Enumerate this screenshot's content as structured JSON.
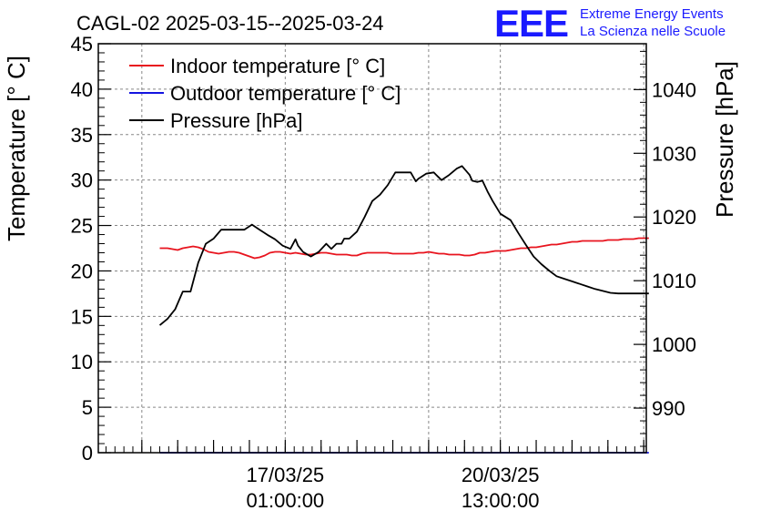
{
  "chart_data": {
    "type": "line",
    "title": "CAGL-02 2025-03-15--2025-03-24",
    "ylabel_left": "Temperature [° C]",
    "ylabel_right": "Pressure [hPa]",
    "ylim_left": [
      0,
      45
    ],
    "ylim_right": [
      983.0,
      1047.2
    ],
    "xlim_hours": [
      -24,
      190
    ],
    "x_unit": "hours since 2025-03-15 00:00",
    "left_ticks": [
      "0",
      "5",
      "10",
      "15",
      "20",
      "25",
      "30",
      "35",
      "40",
      "45"
    ],
    "right_ticks": [
      "990",
      "1000",
      "1010",
      "1020",
      "1030",
      "1040"
    ],
    "x_tick_labels": [
      {
        "x": 49,
        "date": "17/03/25",
        "time": "01:00:00"
      },
      {
        "x": 133,
        "date": "20/03/25",
        "time": "13:00:00"
      }
    ],
    "x_grid": [
      -7,
      49,
      105,
      133,
      189
    ],
    "series": [
      {
        "name": "Indoor temperature [° C]",
        "axis": "left",
        "color": "#e8141e",
        "x": [
          0,
          3,
          5,
          7,
          9,
          11,
          13,
          15,
          17,
          19,
          21,
          23,
          25,
          27,
          29,
          31,
          33,
          35,
          37,
          39,
          41,
          43,
          45,
          47,
          49,
          51,
          53,
          55,
          57,
          59,
          61,
          63,
          65,
          67,
          69,
          71,
          73,
          75,
          77,
          79,
          81,
          83,
          85,
          87,
          89,
          91,
          93,
          95,
          97,
          99,
          101,
          103,
          105,
          107,
          109,
          111,
          113,
          115,
          117,
          119,
          121,
          123,
          125,
          127,
          129,
          131,
          133,
          135,
          137,
          139,
          141,
          143,
          145,
          147,
          149,
          151,
          153,
          155,
          157,
          159,
          161,
          163,
          165,
          167,
          169,
          171,
          173,
          175,
          177,
          179,
          181,
          183,
          185,
          187,
          189,
          191
        ],
        "values": [
          22.5,
          22.5,
          22.4,
          22.3,
          22.5,
          22.6,
          22.7,
          22.6,
          22.4,
          22.1,
          22.0,
          21.9,
          22.0,
          22.1,
          22.1,
          22.0,
          21.8,
          21.6,
          21.4,
          21.5,
          21.7,
          22.0,
          22.1,
          22.1,
          22.0,
          21.9,
          22.0,
          21.9,
          21.8,
          21.8,
          21.9,
          22.0,
          22.0,
          21.9,
          21.8,
          21.8,
          21.8,
          21.7,
          21.7,
          21.9,
          22.0,
          22.0,
          22.0,
          22.0,
          22.0,
          21.9,
          21.9,
          21.9,
          21.9,
          21.9,
          22.0,
          22.0,
          22.1,
          22.0,
          21.9,
          21.9,
          21.8,
          21.8,
          21.8,
          21.7,
          21.7,
          21.8,
          22.0,
          22.0,
          22.1,
          22.2,
          22.2,
          22.2,
          22.3,
          22.4,
          22.5,
          22.5,
          22.6,
          22.6,
          22.7,
          22.8,
          22.9,
          22.9,
          23.0,
          23.1,
          23.2,
          23.2,
          23.3,
          23.3,
          23.3,
          23.3,
          23.3,
          23.4,
          23.4,
          23.4,
          23.5,
          23.5,
          23.5,
          23.6,
          23.6,
          23.6
        ]
      },
      {
        "name": "Outdoor temperature [° C]",
        "axis": "left",
        "color": "#1414e0",
        "x": [
          0,
          191
        ],
        "values": [
          0,
          0
        ]
      },
      {
        "name": "Pressure [hPa]",
        "axis": "right",
        "color": "#000000",
        "x": [
          0,
          3,
          6,
          9,
          12,
          15,
          18,
          21,
          24,
          27,
          30,
          33,
          36,
          39,
          42,
          45,
          48,
          51,
          53,
          54,
          56,
          59,
          62,
          65,
          67,
          69,
          71,
          72,
          74,
          77,
          80,
          83,
          86,
          89,
          92,
          95,
          98,
          100,
          101,
          104,
          107,
          108,
          110,
          113,
          116,
          118,
          121,
          122,
          124,
          126,
          128,
          130,
          133,
          137,
          140,
          143,
          146,
          149,
          152,
          155,
          158,
          161,
          164,
          167,
          170,
          173,
          176,
          179,
          182,
          185,
          188,
          191
        ],
        "values": [
          1003.0,
          1004.0,
          1005.5,
          1008.3,
          1008.3,
          1012.8,
          1015.8,
          1016.6,
          1018.0,
          1018.0,
          1018.0,
          1018.0,
          1018.8,
          1018.0,
          1017.2,
          1016.5,
          1015.5,
          1015.0,
          1016.5,
          1015.5,
          1014.5,
          1013.8,
          1014.5,
          1015.8,
          1015.0,
          1015.8,
          1015.8,
          1016.6,
          1016.6,
          1017.7,
          1020.0,
          1022.5,
          1023.5,
          1025.0,
          1027.0,
          1027.0,
          1027.0,
          1025.6,
          1026.0,
          1026.8,
          1027.0,
          1026.6,
          1025.8,
          1026.6,
          1027.6,
          1028.0,
          1026.6,
          1025.7,
          1025.5,
          1025.7,
          1024.0,
          1022.5,
          1020.5,
          1019.5,
          1017.5,
          1015.6,
          1013.8,
          1012.6,
          1011.6,
          1010.7,
          1010.3,
          1009.9,
          1009.5,
          1009.1,
          1008.7,
          1008.4,
          1008.1,
          1008.0,
          1008.0,
          1008.0,
          1008.0,
          1008.0
        ]
      }
    ],
    "legend": {
      "position": "top-left",
      "entries": [
        "Indoor temperature [° C]",
        "Outdoor temperature [° C]",
        "Pressure [hPa]"
      ]
    }
  },
  "logo": {
    "mark": "EEE",
    "line1": "Extreme Energy Events",
    "line2": "La Scienza nelle Scuole"
  }
}
